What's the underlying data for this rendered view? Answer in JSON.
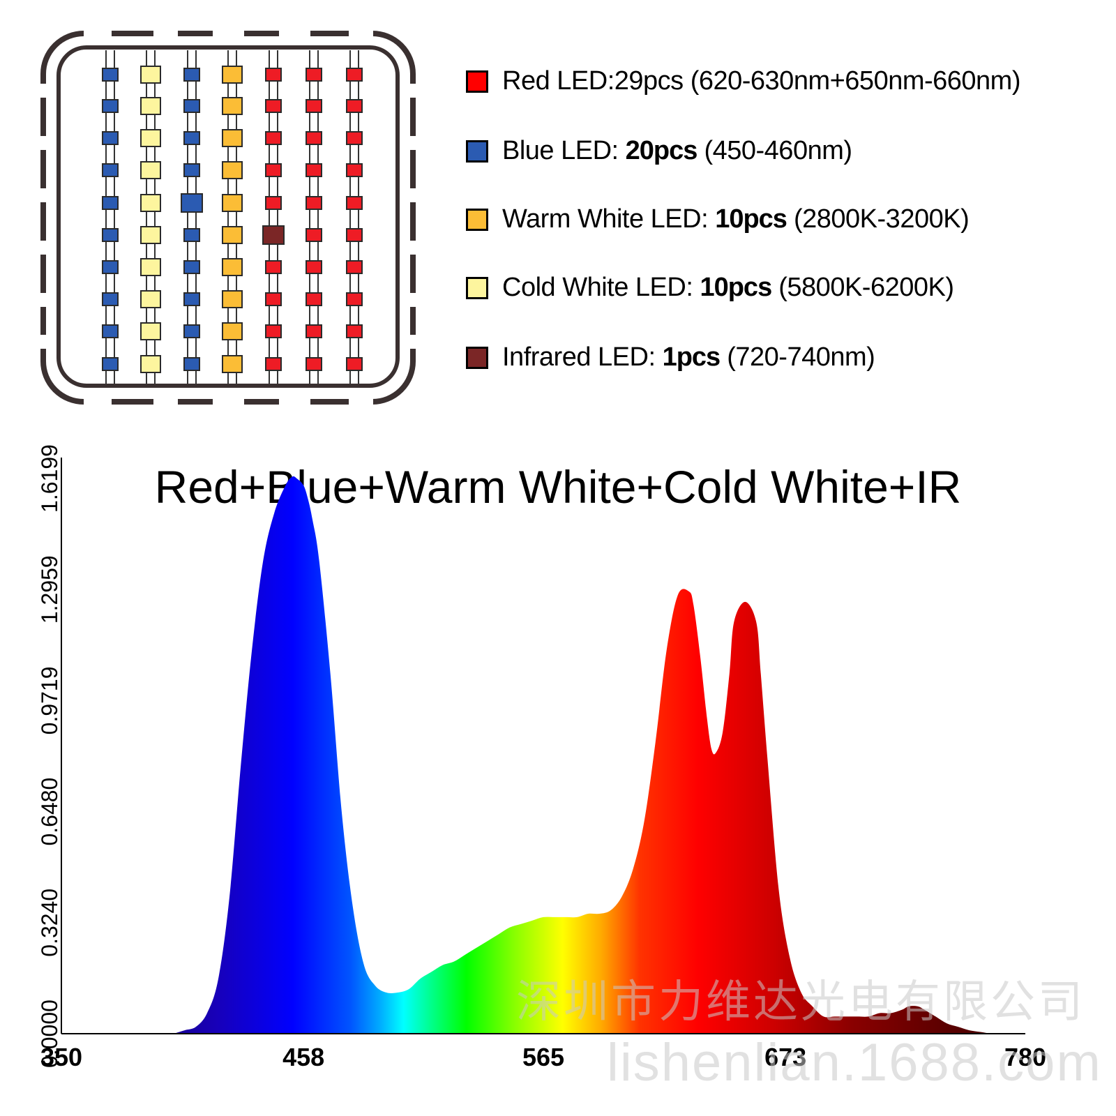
{
  "legend": [
    {
      "name": "Red LED",
      "color": "#ff0000",
      "label": "Red LED:29pcs (620-630nm+650nm-660nm)",
      "prefix": "Red LED:29pcs (620-630nm+650nm-660nm)",
      "count": "",
      "range": ""
    },
    {
      "name": "Blue LED",
      "color": "#2b5bb2",
      "prefix": "Blue LED: ",
      "count": "20pcs",
      "range": " (450-460nm)"
    },
    {
      "name": "Warm White LED",
      "color": "#fbbd36",
      "prefix": "Warm White LED: ",
      "count": "10pcs",
      "range": " (2800K-3200K)"
    },
    {
      "name": "Cold White LED",
      "color": "#fdf59e",
      "prefix": "Cold White LED: ",
      "count": "10pcs",
      "range": " (5800K-6200K)"
    },
    {
      "name": "Infrared LED",
      "color": "#7b2626",
      "prefix": "Infrared LED: ",
      "count": "1pcs",
      "range": " (720-740nm)"
    }
  ],
  "chip_layout": {
    "columns": [
      "blue",
      "cold-white",
      "blue",
      "warm-white",
      "red",
      "red",
      "red"
    ],
    "rows": 10,
    "special": [
      {
        "column": 2,
        "row": 4,
        "type": "blue-large"
      },
      {
        "column": 4,
        "row": 5,
        "type": "infrared"
      }
    ]
  },
  "watermark": {
    "cn": "深圳市力维达光电有限公司",
    "en": "lishenlian.1688.com"
  },
  "chart_data": {
    "type": "area",
    "title": "Red+Blue+Warm White+Cold White+IR",
    "xlabel": "",
    "ylabel": "",
    "xlim": [
      350,
      780
    ],
    "ylim": [
      0,
      1.6199
    ],
    "x_ticks": [
      "350",
      "458",
      "565",
      "673",
      "780"
    ],
    "y_ticks": [
      "0.0000",
      "0.3240",
      "0.6480",
      "0.9719",
      "1.2959",
      "1.6199"
    ],
    "grid": false,
    "fill": "visible-spectrum gradient",
    "x": [
      400,
      405,
      410,
      415,
      420,
      425,
      430,
      435,
      440,
      445,
      450,
      453,
      455,
      458,
      460,
      462,
      465,
      470,
      475,
      480,
      485,
      490,
      495,
      500,
      505,
      510,
      515,
      520,
      525,
      530,
      535,
      540,
      545,
      550,
      555,
      560,
      565,
      570,
      575,
      580,
      585,
      590,
      595,
      600,
      605,
      610,
      615,
      620,
      625,
      630,
      632,
      635,
      638,
      640,
      642,
      645,
      648,
      650,
      655,
      660,
      662,
      665,
      670,
      675,
      680,
      685,
      690,
      695,
      700,
      705,
      710,
      715,
      720,
      725,
      728,
      732,
      735,
      740,
      745,
      750,
      755,
      760,
      765,
      770,
      780
    ],
    "y": [
      0.0,
      0.01,
      0.02,
      0.06,
      0.16,
      0.4,
      0.78,
      1.12,
      1.38,
      1.52,
      1.6,
      1.625,
      1.62,
      1.6,
      1.56,
      1.5,
      1.38,
      1.05,
      0.65,
      0.37,
      0.2,
      0.14,
      0.12,
      0.12,
      0.13,
      0.16,
      0.18,
      0.2,
      0.21,
      0.23,
      0.25,
      0.27,
      0.29,
      0.31,
      0.32,
      0.33,
      0.34,
      0.34,
      0.34,
      0.34,
      0.35,
      0.35,
      0.36,
      0.4,
      0.48,
      0.62,
      0.85,
      1.12,
      1.28,
      1.29,
      1.25,
      1.1,
      0.92,
      0.83,
      0.82,
      0.88,
      1.05,
      1.2,
      1.26,
      1.2,
      1.05,
      0.8,
      0.42,
      0.22,
      0.12,
      0.08,
      0.05,
      0.05,
      0.05,
      0.05,
      0.05,
      0.06,
      0.06,
      0.07,
      0.08,
      0.08,
      0.07,
      0.05,
      0.03,
      0.02,
      0.01,
      0.005,
      0.0,
      0.0,
      0.0
    ]
  }
}
